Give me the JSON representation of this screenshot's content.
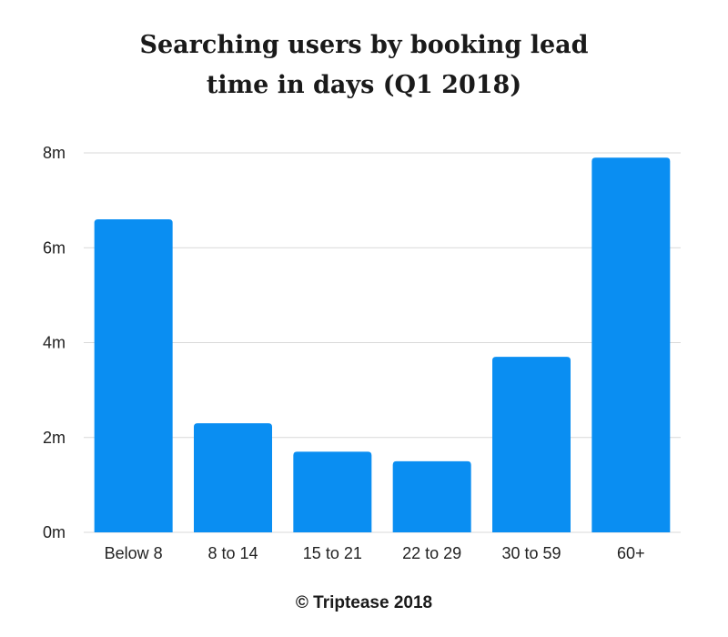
{
  "chart_data": {
    "type": "bar",
    "title_lines": [
      "Searching users by booking lead",
      "time in days (Q1 2018)"
    ],
    "categories": [
      "Below 8",
      "8 to 14",
      "15 to 21",
      "22 to 29",
      "30 to 59",
      "60+"
    ],
    "values": [
      6.6,
      2.3,
      1.7,
      1.5,
      3.7,
      7.9
    ],
    "ylim": [
      0,
      8
    ],
    "y_ticks": [
      0,
      2,
      4,
      6,
      8
    ],
    "y_tick_labels": [
      "0m",
      "2m",
      "4m",
      "6m",
      "8m"
    ],
    "xlabel": "",
    "ylabel": "",
    "grid": true,
    "bar_color": "#0a8ef2",
    "grid_color": "#d9d9d9"
  },
  "footer": {
    "text": "© Triptease 2018"
  }
}
